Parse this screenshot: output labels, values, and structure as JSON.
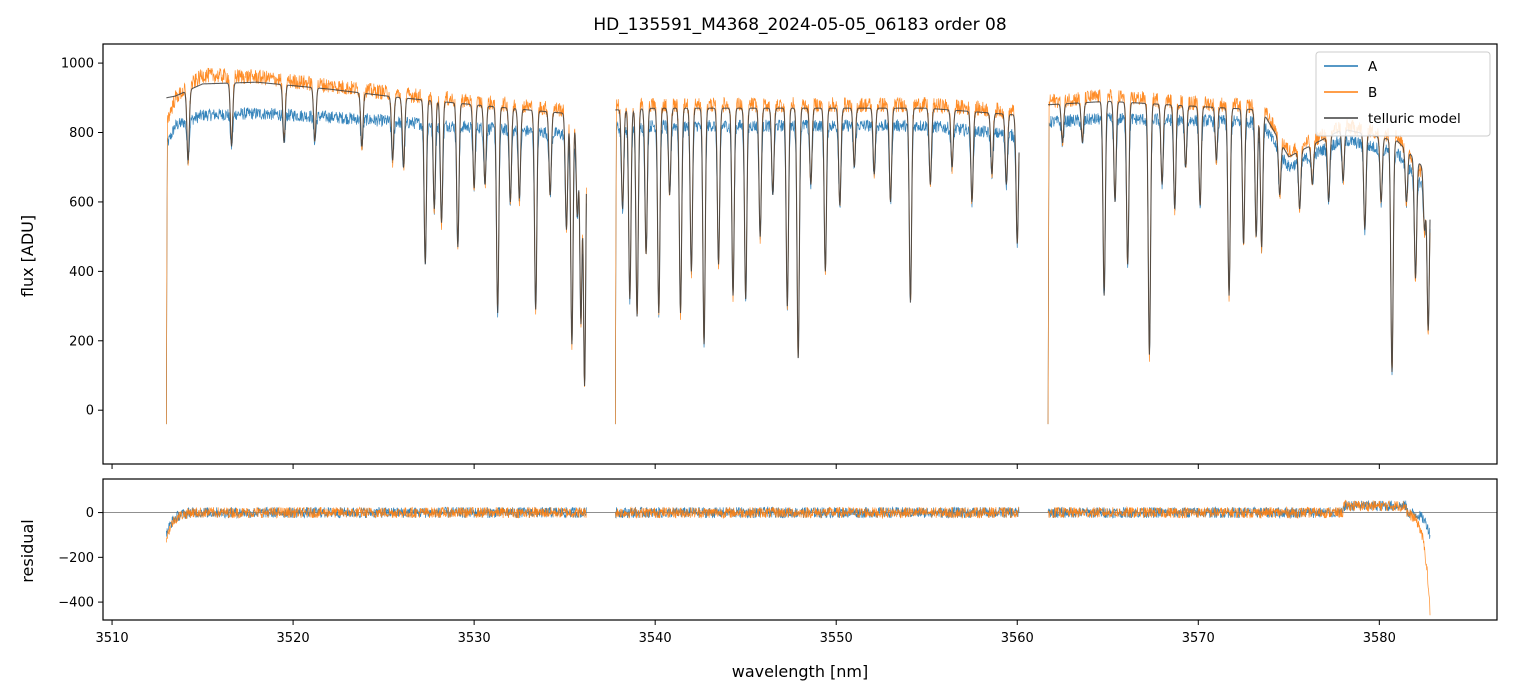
{
  "chart_data": [
    {
      "type": "line",
      "panel": "top",
      "title": "HD_135591_M4368_2024-05-05_06183  order 08",
      "xlabel": "",
      "ylabel": "flux [ADU]",
      "xlim": [
        3509.5,
        3586.5
      ],
      "ylim": [
        -155,
        1055
      ],
      "yticks": [
        0,
        200,
        400,
        600,
        800,
        1000
      ],
      "yticklabels": [
        "0",
        "200",
        "400",
        "600",
        "800",
        "1000"
      ],
      "legend_position": "top-right",
      "segments": [
        [
          3513.0,
          3536.2
        ],
        [
          3537.8,
          3560.1
        ],
        [
          3561.7,
          3582.8
        ]
      ],
      "series": [
        {
          "name": "A",
          "color": "#1f77b4",
          "continuum_x": [
            3513.0,
            3513.5,
            3515,
            3518,
            3522,
            3526,
            3530,
            3534,
            3536.2,
            3537.8,
            3540,
            3545,
            3550,
            3555,
            3560.1,
            3561.7,
            3565,
            3570,
            3573.5,
            3575,
            3578,
            3581,
            3582.8
          ],
          "continuum_y": [
            760,
            820,
            850,
            855,
            845,
            830,
            815,
            800,
            790,
            815,
            820,
            820,
            820,
            820,
            790,
            830,
            840,
            835,
            830,
            700,
            780,
            740,
            620
          ]
        },
        {
          "name": "B",
          "color": "#ff7f0e",
          "continuum_x": [
            3513.0,
            3513.5,
            3515,
            3518,
            3522,
            3526,
            3530,
            3534,
            3536.2,
            3537.8,
            3540,
            3545,
            3550,
            3555,
            3560.1,
            3561.7,
            3565,
            3570,
            3573.5,
            3575,
            3578,
            3581,
            3582.8
          ],
          "continuum_y": [
            830,
            900,
            965,
            960,
            935,
            910,
            890,
            870,
            860,
            875,
            880,
            880,
            880,
            880,
            860,
            890,
            905,
            885,
            875,
            745,
            820,
            790,
            650
          ]
        },
        {
          "name": "telluric model",
          "color": "#3f3f3f",
          "continuum_x": [
            3513.0,
            3513.5,
            3515,
            3518,
            3522,
            3526,
            3530,
            3534,
            3536.2,
            3537.8,
            3540,
            3545,
            3550,
            3555,
            3560.1,
            3561.7,
            3565,
            3570,
            3573.5,
            3575,
            3578,
            3581,
            3582.8
          ],
          "continuum_y": [
            900,
            905,
            940,
            945,
            925,
            900,
            880,
            860,
            850,
            865,
            870,
            870,
            870,
            870,
            850,
            880,
            890,
            875,
            865,
            730,
            810,
            775,
            680
          ]
        }
      ],
      "absorption_lines": [
        {
          "x": 3514.2,
          "min": 720
        },
        {
          "x": 3516.6,
          "min": 760
        },
        {
          "x": 3519.5,
          "min": 770
        },
        {
          "x": 3521.2,
          "min": 775
        },
        {
          "x": 3523.8,
          "min": 760
        },
        {
          "x": 3525.5,
          "min": 720
        },
        {
          "x": 3526.1,
          "min": 700
        },
        {
          "x": 3527.3,
          "min": 420
        },
        {
          "x": 3527.8,
          "min": 580
        },
        {
          "x": 3528.2,
          "min": 540
        },
        {
          "x": 3529.1,
          "min": 470
        },
        {
          "x": 3530.0,
          "min": 640
        },
        {
          "x": 3530.6,
          "min": 650
        },
        {
          "x": 3531.3,
          "min": 280
        },
        {
          "x": 3532.0,
          "min": 600
        },
        {
          "x": 3532.5,
          "min": 610
        },
        {
          "x": 3533.4,
          "min": 290
        },
        {
          "x": 3534.2,
          "min": 620
        },
        {
          "x": 3535.1,
          "min": 520
        },
        {
          "x": 3535.4,
          "min": 190
        },
        {
          "x": 3535.7,
          "min": 560
        },
        {
          "x": 3535.9,
          "min": 250
        },
        {
          "x": 3536.1,
          "min": 70
        },
        {
          "x": 3538.2,
          "min": 580
        },
        {
          "x": 3538.6,
          "min": 320
        },
        {
          "x": 3539.0,
          "min": 270
        },
        {
          "x": 3539.5,
          "min": 450
        },
        {
          "x": 3540.2,
          "min": 280
        },
        {
          "x": 3540.8,
          "min": 620
        },
        {
          "x": 3541.4,
          "min": 280
        },
        {
          "x": 3542.0,
          "min": 400
        },
        {
          "x": 3542.7,
          "min": 190
        },
        {
          "x": 3543.5,
          "min": 420
        },
        {
          "x": 3544.3,
          "min": 330
        },
        {
          "x": 3545.0,
          "min": 320
        },
        {
          "x": 3545.8,
          "min": 500
        },
        {
          "x": 3546.5,
          "min": 620
        },
        {
          "x": 3547.3,
          "min": 300
        },
        {
          "x": 3547.9,
          "min": 150
        },
        {
          "x": 3548.6,
          "min": 650
        },
        {
          "x": 3549.4,
          "min": 400
        },
        {
          "x": 3550.2,
          "min": 590
        },
        {
          "x": 3551.0,
          "min": 700
        },
        {
          "x": 3552.1,
          "min": 680
        },
        {
          "x": 3553.0,
          "min": 600
        },
        {
          "x": 3554.1,
          "min": 310
        },
        {
          "x": 3555.2,
          "min": 650
        },
        {
          "x": 3556.4,
          "min": 700
        },
        {
          "x": 3557.5,
          "min": 600
        },
        {
          "x": 3558.6,
          "min": 680
        },
        {
          "x": 3559.4,
          "min": 650
        },
        {
          "x": 3560.0,
          "min": 480
        },
        {
          "x": 3562.5,
          "min": 770
        },
        {
          "x": 3563.6,
          "min": 770
        },
        {
          "x": 3564.8,
          "min": 330
        },
        {
          "x": 3565.4,
          "min": 600
        },
        {
          "x": 3566.1,
          "min": 420
        },
        {
          "x": 3567.3,
          "min": 160
        },
        {
          "x": 3568.0,
          "min": 650
        },
        {
          "x": 3568.7,
          "min": 580
        },
        {
          "x": 3569.3,
          "min": 700
        },
        {
          "x": 3570.1,
          "min": 590
        },
        {
          "x": 3571.0,
          "min": 720
        },
        {
          "x": 3571.7,
          "min": 330
        },
        {
          "x": 3572.5,
          "min": 480
        },
        {
          "x": 3573.2,
          "min": 500
        },
        {
          "x": 3573.5,
          "min": 470
        },
        {
          "x": 3574.5,
          "min": 620
        },
        {
          "x": 3575.6,
          "min": 580
        },
        {
          "x": 3576.3,
          "min": 650
        },
        {
          "x": 3577.2,
          "min": 600
        },
        {
          "x": 3578.0,
          "min": 660
        },
        {
          "x": 3579.2,
          "min": 520
        },
        {
          "x": 3580.1,
          "min": 600
        },
        {
          "x": 3580.7,
          "min": 110
        },
        {
          "x": 3581.5,
          "min": 600
        },
        {
          "x": 3582.0,
          "min": 380
        },
        {
          "x": 3582.5,
          "min": 520
        },
        {
          "x": 3582.7,
          "min": 230
        }
      ]
    },
    {
      "type": "line",
      "panel": "bottom",
      "title": "",
      "xlabel": "wavelength [nm]",
      "ylabel": "residual",
      "xlim": [
        3509.5,
        3586.5
      ],
      "ylim": [
        -480,
        150
      ],
      "xticks": [
        3510,
        3520,
        3530,
        3540,
        3550,
        3560,
        3570,
        3580
      ],
      "xticklabels": [
        "3510",
        "3520",
        "3530",
        "3540",
        "3550",
        "3560",
        "3570",
        "3580"
      ],
      "yticks": [
        0,
        -200,
        -400
      ],
      "yticklabels": [
        "0",
        "−200",
        "−400"
      ],
      "zero_line": true,
      "series": [
        {
          "name": "A",
          "color": "#1f77b4",
          "noise_amplitude": 22,
          "edge_x": [
            3513.0,
            3582.8
          ],
          "edge_y": [
            -100,
            -100
          ]
        },
        {
          "name": "B",
          "color": "#ff7f0e",
          "noise_amplitude": 22,
          "edge_x": [
            3513.0,
            3582.8
          ],
          "edge_y": [
            -120,
            -450
          ]
        }
      ]
    }
  ]
}
